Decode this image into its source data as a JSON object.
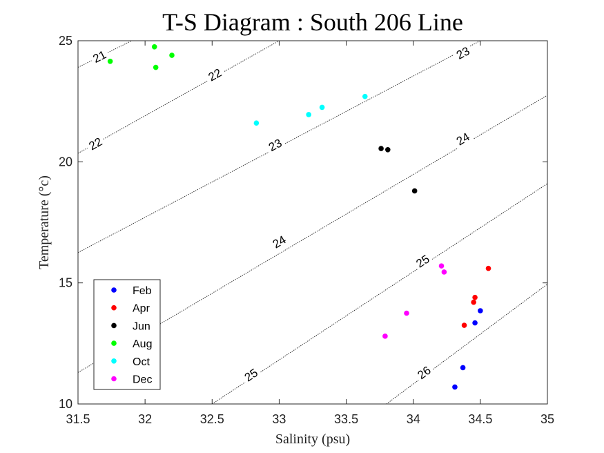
{
  "chart_data": {
    "type": "scatter",
    "title": "T-S Diagram : South 206 Line",
    "xlabel": "Salinity (psu)",
    "ylabel": "Temperature (°c)",
    "xlim": [
      31.5,
      35
    ],
    "ylim": [
      10,
      25
    ],
    "xticks": [
      "31.5",
      "32",
      "32.5",
      "33",
      "33.5",
      "34",
      "34.5",
      "35"
    ],
    "yticks": [
      "10",
      "15",
      "20",
      "25"
    ],
    "legend_position": "bottom-left",
    "series": [
      {
        "name": "Feb",
        "color": "#0000ff",
        "points": [
          [
            34.31,
            10.7
          ],
          [
            34.37,
            11.5
          ],
          [
            34.46,
            13.35
          ],
          [
            34.5,
            13.85
          ]
        ]
      },
      {
        "name": "Apr",
        "color": "#ff0000",
        "points": [
          [
            34.38,
            13.25
          ],
          [
            34.45,
            14.2
          ],
          [
            34.46,
            14.4
          ],
          [
            34.56,
            15.6
          ]
        ]
      },
      {
        "name": "Jun",
        "color": "#000000",
        "points": [
          [
            33.76,
            20.55
          ],
          [
            33.81,
            20.5
          ],
          [
            34.01,
            18.8
          ]
        ]
      },
      {
        "name": "Aug",
        "color": "#00ff00",
        "points": [
          [
            31.74,
            24.15
          ],
          [
            32.07,
            24.75
          ],
          [
            32.08,
            23.9
          ],
          [
            32.2,
            24.4
          ]
        ]
      },
      {
        "name": "Oct",
        "color": "#00ffff",
        "points": [
          [
            32.83,
            21.6
          ],
          [
            33.22,
            21.95
          ],
          [
            33.32,
            22.25
          ],
          [
            33.64,
            22.7
          ]
        ]
      },
      {
        "name": "Dec",
        "color": "#ff00ff",
        "points": [
          [
            33.79,
            12.8
          ],
          [
            33.95,
            13.75
          ],
          [
            34.21,
            15.7
          ],
          [
            34.23,
            15.45
          ]
        ]
      }
    ],
    "contours": [
      {
        "level": "21",
        "points": [
          [
            31.5,
            23.9
          ],
          [
            31.9,
            25.0
          ]
        ],
        "labels": [
          {
            "text": "21",
            "x": 31.66,
            "y": 24.35
          }
        ]
      },
      {
        "level": "22",
        "points": [
          [
            31.5,
            20.35
          ],
          [
            33.0,
            25.0
          ]
        ],
        "labels": [
          {
            "text": "22",
            "x": 31.63,
            "y": 20.75
          },
          {
            "text": "22",
            "x": 32.52,
            "y": 23.6
          }
        ]
      },
      {
        "level": "23",
        "points": [
          [
            31.5,
            16.25
          ],
          [
            34.5,
            25.0
          ]
        ],
        "labels": [
          {
            "text": "23",
            "x": 32.97,
            "y": 20.7
          },
          {
            "text": "23",
            "x": 34.37,
            "y": 24.5
          }
        ]
      },
      {
        "level": "24",
        "points": [
          [
            31.5,
            11.3
          ],
          [
            35.0,
            22.75
          ]
        ],
        "labels": [
          {
            "text": "24",
            "x": 33.0,
            "y": 16.7
          },
          {
            "text": "24",
            "x": 34.37,
            "y": 20.95
          }
        ]
      },
      {
        "level": "25",
        "points": [
          [
            32.5,
            10.0
          ],
          [
            35.0,
            19.1
          ]
        ],
        "labels": [
          {
            "text": "25",
            "x": 32.79,
            "y": 11.2
          },
          {
            "text": "25",
            "x": 34.07,
            "y": 15.9
          }
        ]
      },
      {
        "level": "26",
        "points": [
          [
            33.8,
            10.0
          ],
          [
            35.0,
            14.95
          ]
        ],
        "labels": [
          {
            "text": "26",
            "x": 34.08,
            "y": 11.3
          }
        ]
      }
    ],
    "grid": false
  }
}
